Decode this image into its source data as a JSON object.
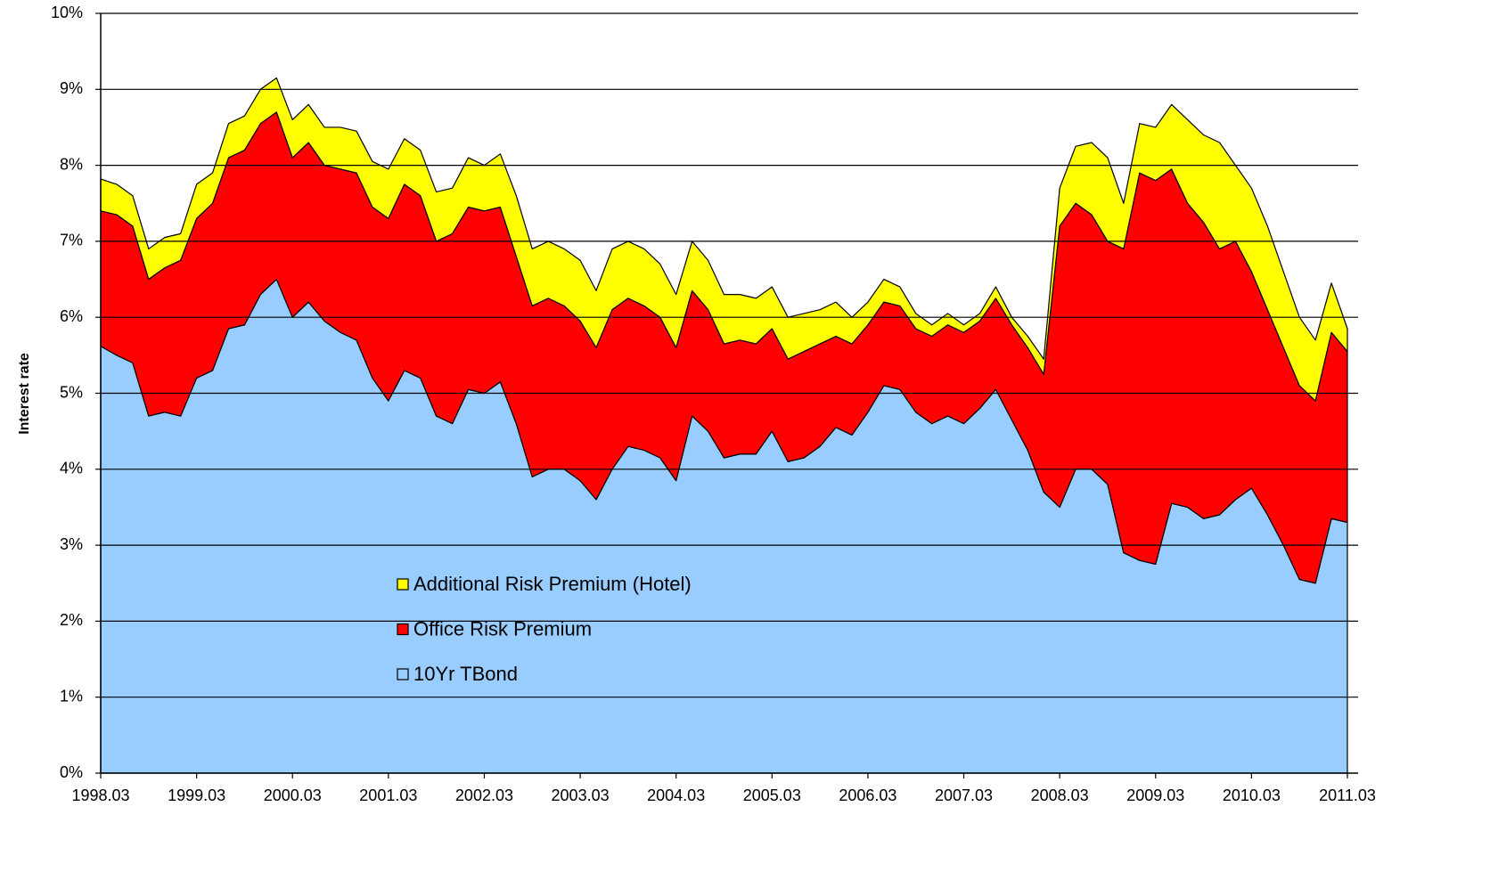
{
  "chart_data": {
    "type": "stacked_area",
    "y_label": "Interest rate",
    "categories": [
      "1998.03",
      null,
      null,
      null,
      null,
      null,
      "1999.03",
      null,
      null,
      null,
      null,
      null,
      "2000.03",
      null,
      null,
      null,
      null,
      null,
      "2001.03",
      null,
      null,
      null,
      null,
      null,
      "2002.03",
      null,
      null,
      null,
      null,
      null,
      "2003.03",
      null,
      null,
      null,
      null,
      null,
      "2004.03",
      null,
      null,
      null,
      null,
      null,
      "2005.03",
      null,
      null,
      null,
      null,
      null,
      "2006.03",
      null,
      null,
      null,
      null,
      null,
      "2007.03",
      null,
      null,
      null,
      null,
      null,
      "2008.03",
      null,
      null,
      null,
      null,
      null,
      "2009.03",
      null,
      null,
      null,
      null,
      null,
      "2010.03",
      null,
      null,
      null,
      null,
      null,
      "2011.03"
    ],
    "series": [
      {
        "name": "10Yr TBond",
        "color": "#99ccff",
        "values": [
          5.62,
          5.5,
          5.4,
          4.7,
          4.75,
          4.7,
          5.2,
          5.3,
          5.85,
          5.9,
          6.3,
          6.5,
          6.0,
          6.2,
          5.95,
          5.8,
          5.7,
          5.2,
          4.9,
          5.3,
          5.2,
          4.7,
          4.6,
          5.05,
          5.0,
          5.15,
          4.6,
          3.9,
          4.0,
          4.0,
          3.85,
          3.6,
          4.0,
          4.3,
          4.25,
          4.15,
          3.85,
          4.7,
          4.5,
          4.15,
          4.2,
          4.2,
          4.5,
          4.1,
          4.15,
          4.3,
          4.55,
          4.45,
          4.75,
          5.1,
          5.05,
          4.75,
          4.6,
          4.7,
          4.6,
          4.8,
          5.05,
          4.65,
          4.25,
          3.7,
          3.5,
          4.0,
          4.0,
          3.8,
          2.9,
          2.8,
          2.75,
          3.55,
          3.5,
          3.35,
          3.4,
          3.6,
          3.75,
          3.4,
          3.0,
          2.55,
          2.5,
          3.35,
          3.3
        ]
      },
      {
        "name": "Office Risk Premium",
        "color": "#ff0000",
        "values": [
          1.78,
          1.85,
          1.8,
          1.8,
          1.9,
          2.05,
          2.1,
          2.2,
          2.25,
          2.3,
          2.25,
          2.2,
          2.1,
          2.1,
          2.05,
          2.15,
          2.2,
          2.25,
          2.4,
          2.45,
          2.4,
          2.3,
          2.5,
          2.4,
          2.4,
          2.3,
          2.2,
          2.25,
          2.25,
          2.15,
          2.1,
          2.0,
          2.1,
          1.95,
          1.9,
          1.85,
          1.75,
          1.65,
          1.6,
          1.5,
          1.5,
          1.45,
          1.35,
          1.35,
          1.4,
          1.35,
          1.2,
          1.2,
          1.15,
          1.1,
          1.1,
          1.1,
          1.15,
          1.2,
          1.2,
          1.15,
          1.2,
          1.25,
          1.35,
          1.55,
          3.7,
          3.5,
          3.35,
          3.2,
          4.0,
          5.1,
          5.05,
          4.4,
          4.0,
          3.9,
          3.5,
          3.4,
          2.85,
          2.7,
          2.6,
          2.55,
          2.4,
          2.45,
          2.25
        ]
      },
      {
        "name": "Additional Risk Premium (Hotel)",
        "color": "#ffff00",
        "values": [
          0.42,
          0.4,
          0.4,
          0.4,
          0.4,
          0.35,
          0.45,
          0.4,
          0.45,
          0.45,
          0.45,
          0.45,
          0.5,
          0.5,
          0.5,
          0.55,
          0.55,
          0.6,
          0.65,
          0.6,
          0.6,
          0.65,
          0.6,
          0.65,
          0.6,
          0.7,
          0.8,
          0.75,
          0.75,
          0.75,
          0.8,
          0.75,
          0.8,
          0.75,
          0.75,
          0.7,
          0.7,
          0.65,
          0.65,
          0.65,
          0.6,
          0.6,
          0.55,
          0.55,
          0.5,
          0.45,
          0.45,
          0.35,
          0.3,
          0.3,
          0.25,
          0.2,
          0.15,
          0.15,
          0.1,
          0.1,
          0.15,
          0.1,
          0.15,
          0.2,
          0.5,
          0.75,
          0.95,
          1.1,
          0.6,
          0.65,
          0.7,
          0.85,
          1.1,
          1.15,
          1.4,
          1.0,
          1.1,
          1.1,
          1.0,
          0.9,
          0.8,
          0.65,
          0.3
        ]
      }
    ],
    "ylim": [
      0,
      10
    ],
    "yticks": [
      {
        "value": 0,
        "label": "0%"
      },
      {
        "value": 1,
        "label": "1%"
      },
      {
        "value": 2,
        "label": "2%"
      },
      {
        "value": 3,
        "label": "3%"
      },
      {
        "value": 4,
        "label": "4%"
      },
      {
        "value": 5,
        "label": "5%"
      },
      {
        "value": 6,
        "label": "6%"
      },
      {
        "value": 7,
        "label": "7%"
      },
      {
        "value": 8,
        "label": "8%"
      },
      {
        "value": 9,
        "label": "9%"
      },
      {
        "value": 10,
        "label": "10%"
      }
    ],
    "grid": true,
    "legend": "lower center"
  }
}
